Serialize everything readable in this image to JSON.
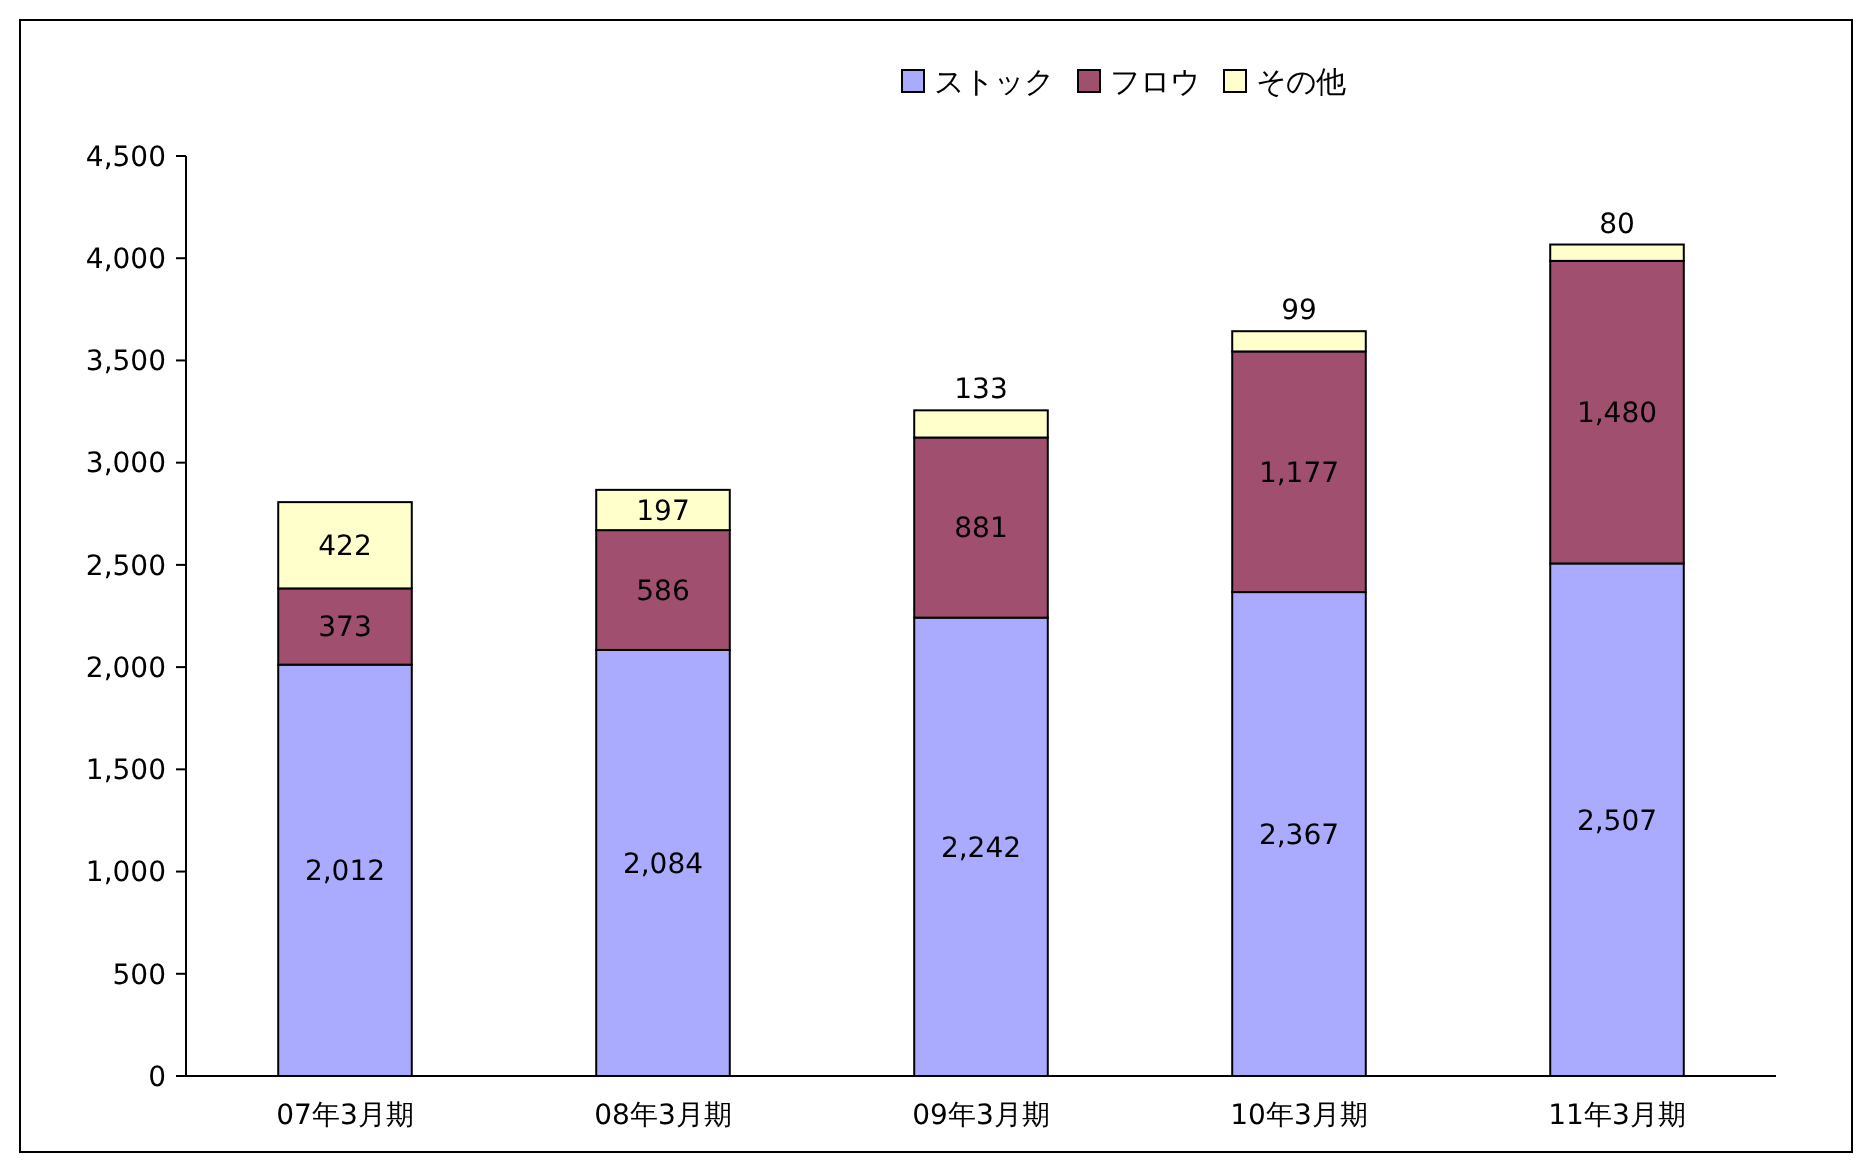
{
  "chart_data": {
    "type": "bar",
    "stacked": true,
    "categories": [
      "07年3月期",
      "08年3月期",
      "09年3月期",
      "10年3月期",
      "11年3月期"
    ],
    "series": [
      {
        "name": "ストック",
        "color": "#aaaaff",
        "values": [
          2012,
          2084,
          2242,
          2367,
          2507
        ],
        "value_labels": [
          "2,012",
          "2,084",
          "2,242",
          "2,367",
          "2,507"
        ]
      },
      {
        "name": "フロウ",
        "color": "#a0506e",
        "values": [
          373,
          586,
          881,
          1177,
          1480
        ],
        "value_labels": [
          "373",
          "586",
          "881",
          "1,177",
          "1,480"
        ]
      },
      {
        "name": "その他",
        "color": "#ffffcc",
        "values": [
          422,
          197,
          133,
          99,
          80
        ],
        "value_labels": [
          "422",
          "197",
          "133",
          "99",
          "80"
        ]
      }
    ],
    "ylim": [
      0,
      4500
    ],
    "yticks": [
      0,
      500,
      {
        "value": 1000,
        "label": "1,000"
      },
      {
        "value": 1500,
        "label": "1,500"
      },
      {
        "value": 2000,
        "label": "2,000"
      },
      {
        "value": 2500,
        "label": "2,500"
      },
      {
        "value": 3000,
        "label": "3,000"
      },
      {
        "value": 3500,
        "label": "3,500"
      },
      {
        "value": 4000,
        "label": "4,000"
      },
      {
        "value": 4500,
        "label": "4,500"
      }
    ],
    "legend": "top",
    "grid": false
  }
}
